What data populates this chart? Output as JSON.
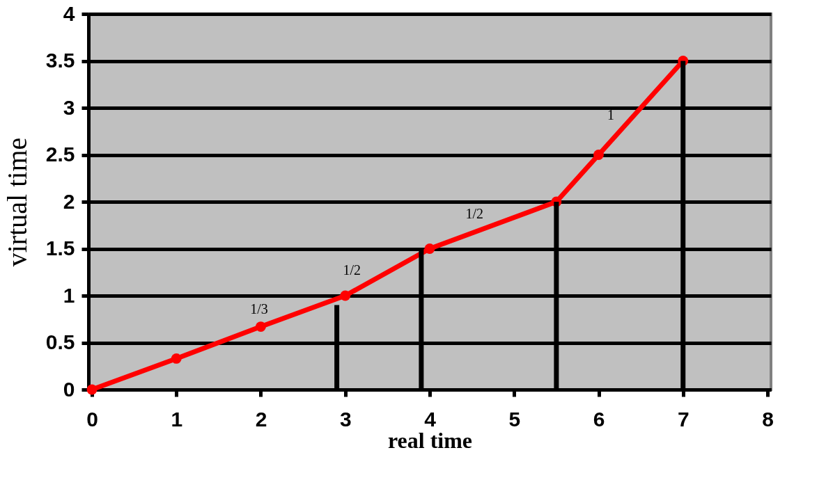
{
  "chart_data": {
    "type": "line",
    "xlabel": "real time",
    "ylabel": "virtual time",
    "x": [
      0,
      1,
      2,
      3,
      4,
      5.5,
      6,
      7
    ],
    "series": [
      {
        "color": "#ff0000",
        "values": [
          0,
          0.33,
          0.67,
          1,
          1.5,
          2,
          2.5,
          3.5
        ]
      },
      {
        "type": "bar",
        "color": "#000000",
        "x": [
          2.9,
          3.9,
          5.5,
          7
        ],
        "values": [
          0.9,
          1.5,
          2,
          3.5
        ]
      }
    ],
    "xlim": [
      0,
      8
    ],
    "xticks": [
      0,
      1,
      2,
      3,
      4,
      5,
      6,
      7,
      8
    ],
    "ylim": [
      0,
      4
    ],
    "yticks": [
      0,
      0.5,
      1,
      1.5,
      2,
      2.5,
      3,
      3.5,
      4
    ],
    "grid": "y",
    "marker": "circle",
    "line_style": "solid",
    "legend": false,
    "annotations": [
      {
        "text": "1/3",
        "x": 2.2,
        "y": 0.73
      },
      {
        "text": "1/2",
        "x": 3.3,
        "y": 1.15
      },
      {
        "text": "1/2",
        "x": 4.75,
        "y": 1.75
      },
      {
        "text": "1",
        "x": 6.3,
        "y": 2.8
      }
    ]
  }
}
